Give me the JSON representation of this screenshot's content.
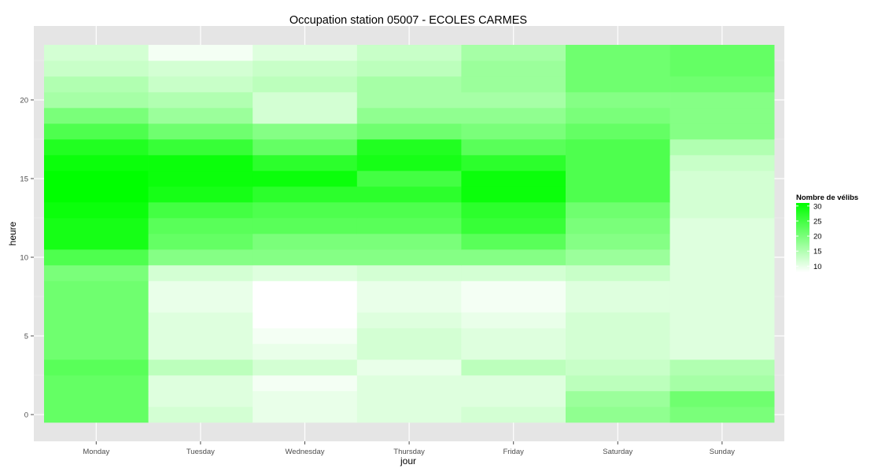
{
  "chart_data": {
    "type": "heatmap",
    "title": "Occupation station 05007 - ECOLES CARMES",
    "xlabel": "jour",
    "ylabel": "heure",
    "x_categories": [
      "Monday",
      "Tuesday",
      "Wednesday",
      "Thursday",
      "Friday",
      "Saturday",
      "Sunday"
    ],
    "y_values": [
      0,
      1,
      2,
      3,
      4,
      5,
      6,
      7,
      8,
      9,
      10,
      11,
      12,
      13,
      14,
      15,
      16,
      17,
      18,
      19,
      20,
      21,
      22,
      23
    ],
    "y_ticks": [
      0,
      5,
      10,
      15,
      20
    ],
    "ylim": [
      -0.5,
      23.5
    ],
    "grid": true,
    "color_scale": {
      "low": "#ffffff",
      "high": "#00ff00",
      "min": 8,
      "max": 31
    },
    "legend": {
      "title": "Nombre de vélibs",
      "placement": "right",
      "breaks": [
        30,
        25,
        20,
        15,
        10
      ]
    },
    "values": [
      [
        22,
        12,
        10,
        11,
        12,
        18,
        20
      ],
      [
        22,
        11,
        10,
        11,
        11,
        17,
        21
      ],
      [
        22,
        11,
        9,
        11,
        11,
        14,
        16
      ],
      [
        23,
        14,
        12,
        10,
        14,
        13,
        15
      ],
      [
        21,
        11,
        10,
        12,
        11,
        12,
        11
      ],
      [
        21,
        11,
        9,
        12,
        11,
        12,
        11
      ],
      [
        21,
        11,
        8,
        11,
        10,
        12,
        11
      ],
      [
        21,
        10,
        8,
        10,
        9,
        11,
        11
      ],
      [
        21,
        10,
        8,
        10,
        9,
        11,
        11
      ],
      [
        20,
        12,
        11,
        12,
        12,
        13,
        11
      ],
      [
        24,
        19,
        19,
        19,
        19,
        17,
        11
      ],
      [
        29,
        22,
        20,
        20,
        23,
        19,
        11
      ],
      [
        29,
        23,
        23,
        23,
        26,
        20,
        11
      ],
      [
        30,
        25,
        24,
        24,
        27,
        21,
        12
      ],
      [
        31,
        29,
        27,
        27,
        30,
        24,
        12
      ],
      [
        31,
        30,
        30,
        25,
        30,
        24,
        12
      ],
      [
        30,
        30,
        27,
        29,
        27,
        24,
        13
      ],
      [
        28,
        26,
        22,
        28,
        23,
        24,
        15
      ],
      [
        24,
        21,
        19,
        21,
        20,
        22,
        19
      ],
      [
        20,
        17,
        12,
        18,
        18,
        20,
        19
      ],
      [
        16,
        15,
        12,
        16,
        16,
        19,
        19
      ],
      [
        15,
        13,
        14,
        16,
        17,
        21,
        21
      ],
      [
        13,
        12,
        13,
        14,
        17,
        21,
        22
      ],
      [
        12,
        9,
        11,
        13,
        16,
        21,
        22
      ]
    ]
  }
}
